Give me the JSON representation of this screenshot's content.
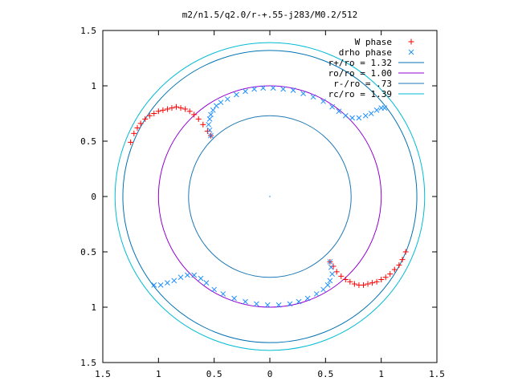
{
  "chart_data": {
    "type": "scatter",
    "title": "m2/n1.5/q2.0/r-+.55-j283/M0.2/512",
    "xlabel": "",
    "ylabel": "",
    "xlim": [
      -1.5,
      1.5
    ],
    "ylim": [
      -1.5,
      1.5
    ],
    "x_tick_labels": [
      "1.5",
      "1",
      "0.5",
      "0",
      "0.5",
      "1",
      "1.5"
    ],
    "y_tick_labels": [
      "1.5",
      "1",
      "0.5",
      "0",
      "0.5",
      "1",
      "1.5"
    ],
    "tick_values": [
      -1.5,
      -1,
      -0.5,
      0,
      0.5,
      1,
      1.5
    ],
    "grid": false,
    "legend_position": "top-right",
    "center_point": [
      0,
      0
    ],
    "circles": [
      {
        "name": "r+/ro = 1.32",
        "radius": 1.32,
        "color": "#0072b2"
      },
      {
        "name": "ro/ro = 1.00",
        "radius": 1.0,
        "color": "#9400d3"
      },
      {
        "name": "r-/ro = .73",
        "radius": 0.73,
        "color": "#1f78b4"
      },
      {
        "name": "rc/ro = 1.39",
        "radius": 1.39,
        "color": "#00bcd4"
      }
    ],
    "series": [
      {
        "name": "W phase",
        "marker": "+",
        "color": "#ff0000",
        "points": [
          [
            -1.25,
            0.49
          ],
          [
            -1.22,
            0.57
          ],
          [
            -1.19,
            0.62
          ],
          [
            -1.16,
            0.66
          ],
          [
            -1.12,
            0.7
          ],
          [
            -1.08,
            0.73
          ],
          [
            -1.04,
            0.75
          ],
          [
            -1.0,
            0.77
          ],
          [
            -0.96,
            0.78
          ],
          [
            -0.92,
            0.79
          ],
          [
            -0.88,
            0.8
          ],
          [
            -0.84,
            0.81
          ],
          [
            -0.8,
            0.8
          ],
          [
            -0.76,
            0.79
          ],
          [
            -0.72,
            0.77
          ],
          [
            -0.68,
            0.74
          ],
          [
            -0.64,
            0.7
          ],
          [
            -0.6,
            0.65
          ],
          [
            -0.56,
            0.59
          ],
          [
            -0.53,
            0.55
          ],
          [
            1.22,
            -0.5
          ],
          [
            1.19,
            -0.57
          ],
          [
            1.16,
            -0.62
          ],
          [
            1.12,
            -0.66
          ],
          [
            1.08,
            -0.7
          ],
          [
            1.04,
            -0.73
          ],
          [
            1.0,
            -0.75
          ],
          [
            0.96,
            -0.77
          ],
          [
            0.92,
            -0.78
          ],
          [
            0.88,
            -0.79
          ],
          [
            0.84,
            -0.8
          ],
          [
            0.8,
            -0.8
          ],
          [
            0.76,
            -0.79
          ],
          [
            0.72,
            -0.77
          ],
          [
            0.68,
            -0.75
          ],
          [
            0.64,
            -0.72
          ],
          [
            0.6,
            -0.68
          ],
          [
            0.57,
            -0.63
          ],
          [
            0.54,
            -0.59
          ]
        ]
      },
      {
        "name": "drho phase",
        "marker": "x",
        "color": "#1e90ff",
        "points": [
          [
            -0.53,
            0.55
          ],
          [
            -0.54,
            0.6
          ],
          [
            -0.55,
            0.65
          ],
          [
            -0.54,
            0.7
          ],
          [
            -0.53,
            0.74
          ],
          [
            -0.51,
            0.78
          ],
          [
            -0.48,
            0.82
          ],
          [
            -0.44,
            0.85
          ],
          [
            -0.38,
            0.88
          ],
          [
            -0.3,
            0.92
          ],
          [
            -0.22,
            0.95
          ],
          [
            -0.14,
            0.97
          ],
          [
            -0.06,
            0.98
          ],
          [
            0.03,
            0.98
          ],
          [
            0.12,
            0.97
          ],
          [
            0.21,
            0.96
          ],
          [
            0.3,
            0.93
          ],
          [
            0.39,
            0.9
          ],
          [
            0.48,
            0.86
          ],
          [
            0.56,
            0.81
          ],
          [
            0.62,
            0.77
          ],
          [
            0.68,
            0.73
          ],
          [
            0.74,
            0.71
          ],
          [
            0.8,
            0.71
          ],
          [
            0.86,
            0.73
          ],
          [
            0.91,
            0.75
          ],
          [
            0.96,
            0.78
          ],
          [
            1.0,
            0.8
          ],
          [
            1.03,
            0.8
          ],
          [
            0.54,
            -0.59
          ],
          [
            0.55,
            -0.64
          ],
          [
            0.56,
            -0.7
          ],
          [
            0.54,
            -0.76
          ],
          [
            0.52,
            -0.8
          ],
          [
            0.48,
            -0.84
          ],
          [
            0.42,
            -0.88
          ],
          [
            0.34,
            -0.92
          ],
          [
            0.26,
            -0.95
          ],
          [
            0.18,
            -0.97
          ],
          [
            0.08,
            -0.98
          ],
          [
            -0.02,
            -0.98
          ],
          [
            -0.12,
            -0.97
          ],
          [
            -0.22,
            -0.95
          ],
          [
            -0.32,
            -0.92
          ],
          [
            -0.42,
            -0.88
          ],
          [
            -0.5,
            -0.84
          ],
          [
            -0.57,
            -0.78
          ],
          [
            -0.62,
            -0.74
          ],
          [
            -0.68,
            -0.71
          ],
          [
            -0.74,
            -0.71
          ],
          [
            -0.8,
            -0.73
          ],
          [
            -0.86,
            -0.76
          ],
          [
            -0.92,
            -0.78
          ],
          [
            -0.98,
            -0.8
          ],
          [
            -1.04,
            -0.8
          ]
        ]
      }
    ]
  }
}
